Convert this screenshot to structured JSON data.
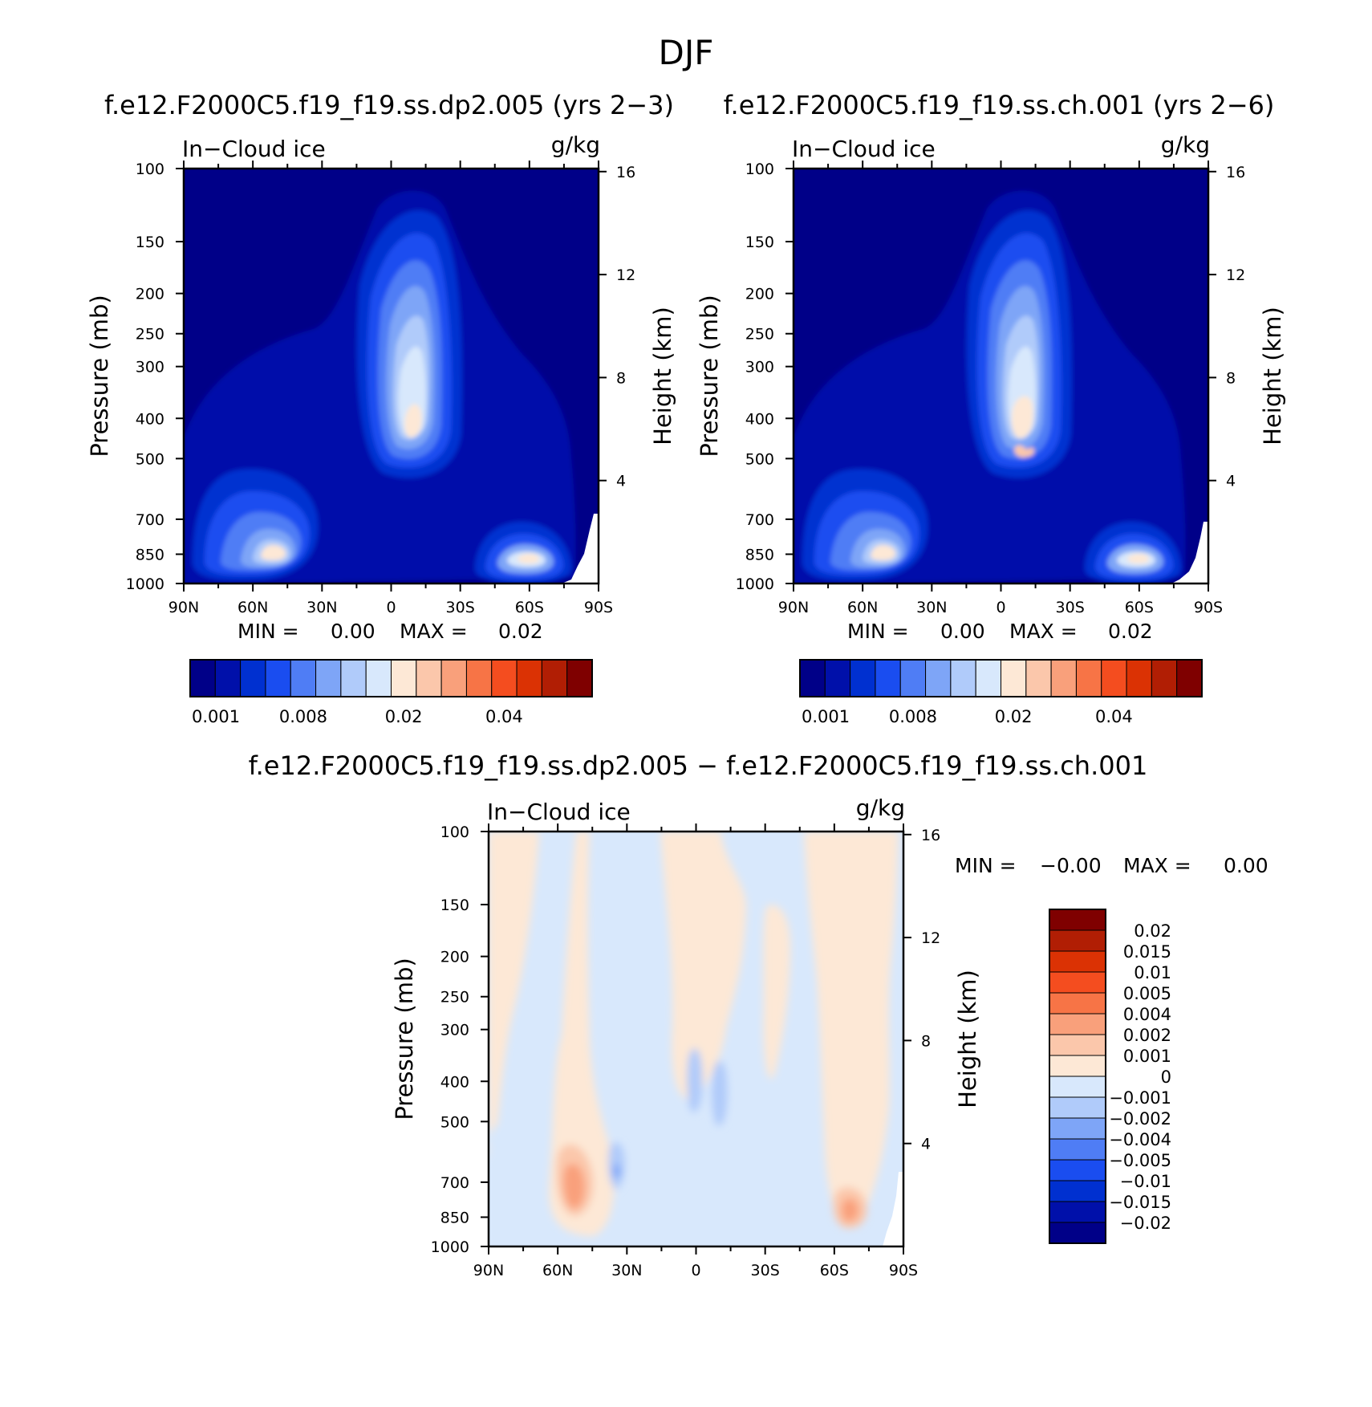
{
  "figure": {
    "title": "DJF",
    "background": "#ffffff"
  },
  "chart_data": [
    {
      "type": "heatmap",
      "title": "f.e12.F2000C5.f19_f19.ss.dp2.005 (yrs 2−3)",
      "variable": "In−Cloud ice",
      "units": "g/kg",
      "xlabel": "",
      "ylabel": "Pressure (mb)",
      "y2label": "Height (km)",
      "x_tick_labels": [
        "90N",
        "60N",
        "30N",
        "0",
        "30S",
        "60S",
        "90S"
      ],
      "x_tick_values": [
        90,
        60,
        30,
        0,
        -30,
        -60,
        -90
      ],
      "y_tick_values": [
        100,
        150,
        200,
        250,
        300,
        400,
        500,
        700,
        850,
        1000
      ],
      "y2_tick_values": [
        16,
        12,
        8,
        4
      ],
      "xlim": [
        90,
        -90
      ],
      "ylim": [
        100,
        1000
      ],
      "min_label": "MIN =",
      "min_value": "0.00",
      "max_label": "MAX =",
      "max_value": "0.02",
      "levels": [
        0.001,
        0.002,
        0.004,
        0.006,
        0.008,
        0.01,
        0.012,
        0.015,
        0.02,
        0.025,
        0.03,
        0.035,
        0.04,
        0.045,
        0.05
      ],
      "colorbar_tick_labels": [
        "0.001",
        "0.008",
        "0.02",
        "0.04"
      ],
      "features": [
        {
          "name": "tropical upper-tropospheric ice maximum",
          "lat_center": -5,
          "pressure_top": 120,
          "pressure_bottom": 570,
          "peak": 0.02
        },
        {
          "name": "northern mid-latitude low-level maximum",
          "lat_center": 45,
          "pressure_top": 520,
          "pressure_bottom": 890,
          "peak": 0.02
        },
        {
          "name": "southern mid-latitude low-level maximum",
          "lat_center": -63,
          "pressure_top": 680,
          "pressure_bottom": 920,
          "peak": 0.02
        }
      ]
    },
    {
      "type": "heatmap",
      "title": "f.e12.F2000C5.f19_f19.ss.ch.001 (yrs 2−6)",
      "variable": "In−Cloud ice",
      "units": "g/kg",
      "xlabel": "",
      "ylabel": "Pressure (mb)",
      "y2label": "Height (km)",
      "x_tick_labels": [
        "90N",
        "60N",
        "30N",
        "0",
        "30S",
        "60S",
        "90S"
      ],
      "x_tick_values": [
        90,
        60,
        30,
        0,
        -30,
        -60,
        -90
      ],
      "y_tick_values": [
        100,
        150,
        200,
        250,
        300,
        400,
        500,
        700,
        850,
        1000
      ],
      "y2_tick_values": [
        16,
        12,
        8,
        4
      ],
      "xlim": [
        90,
        -90
      ],
      "ylim": [
        100,
        1000
      ],
      "min_label": "MIN =",
      "min_value": "0.00",
      "max_label": "MAX =",
      "max_value": "0.02",
      "levels": [
        0.001,
        0.002,
        0.004,
        0.006,
        0.008,
        0.01,
        0.012,
        0.015,
        0.02,
        0.025,
        0.03,
        0.035,
        0.04,
        0.045,
        0.05
      ],
      "colorbar_tick_labels": [
        "0.001",
        "0.008",
        "0.02",
        "0.04"
      ],
      "features": [
        {
          "name": "tropical upper-tropospheric ice maximum",
          "lat_center": -5,
          "pressure_top": 120,
          "pressure_bottom": 570,
          "peak": 0.02
        },
        {
          "name": "northern mid-latitude low-level maximum",
          "lat_center": 45,
          "pressure_top": 520,
          "pressure_bottom": 890,
          "peak": 0.02
        },
        {
          "name": "southern mid-latitude low-level maximum",
          "lat_center": -63,
          "pressure_top": 680,
          "pressure_bottom": 920,
          "peak": 0.02
        }
      ]
    },
    {
      "type": "heatmap",
      "title": "f.e12.F2000C5.f19_f19.ss.dp2.005 − f.e12.F2000C5.f19_f19.ss.ch.001",
      "variable": "In−Cloud ice",
      "units": "g/kg",
      "xlabel": "",
      "ylabel": "Pressure (mb)",
      "y2label": "Height (km)",
      "x_tick_labels": [
        "90N",
        "60N",
        "30N",
        "0",
        "30S",
        "60S",
        "90S"
      ],
      "x_tick_values": [
        90,
        60,
        30,
        0,
        -30,
        -60,
        -90
      ],
      "y_tick_values": [
        100,
        150,
        200,
        250,
        300,
        400,
        500,
        700,
        850,
        1000
      ],
      "y2_tick_values": [
        16,
        12,
        8,
        4
      ],
      "xlim": [
        90,
        -90
      ],
      "ylim": [
        100,
        1000
      ],
      "min_label": "MIN =",
      "min_value": "−0.00",
      "max_label": "MAX =",
      "max_value": "0.00",
      "levels": [
        -0.02,
        -0.015,
        -0.01,
        -0.005,
        -0.004,
        -0.002,
        -0.001,
        0,
        0.001,
        0.002,
        0.004,
        0.005,
        0.01,
        0.015,
        0.02
      ],
      "colorbar_tick_labels": [
        "0.02",
        "0.015",
        "0.01",
        "0.005",
        "0.004",
        "0.002",
        "0.001",
        "0",
        "−0.001",
        "−0.002",
        "−0.004",
        "−0.005",
        "−0.01",
        "−0.015",
        "−0.02"
      ]
    }
  ],
  "colors": {
    "sequential": [
      "#000088",
      "#0010aa",
      "#0030d0",
      "#1a4df0",
      "#4f7df5",
      "#7ea5f7",
      "#b0cbfa",
      "#d8e8fc",
      "#fde8d6",
      "#fbc7ab",
      "#f9a07b",
      "#f77446",
      "#f44d1f",
      "#db3204",
      "#b11e04",
      "#7f0000"
    ],
    "diverging": [
      "#7f0000",
      "#b11e04",
      "#db3204",
      "#f44d1f",
      "#f77446",
      "#f9a07b",
      "#fbc7ab",
      "#fde8d6",
      "#d8e8fc",
      "#b0cbfa",
      "#7ea5f7",
      "#4f7df5",
      "#1a4df0",
      "#0030d0",
      "#0010aa",
      "#000088"
    ]
  }
}
